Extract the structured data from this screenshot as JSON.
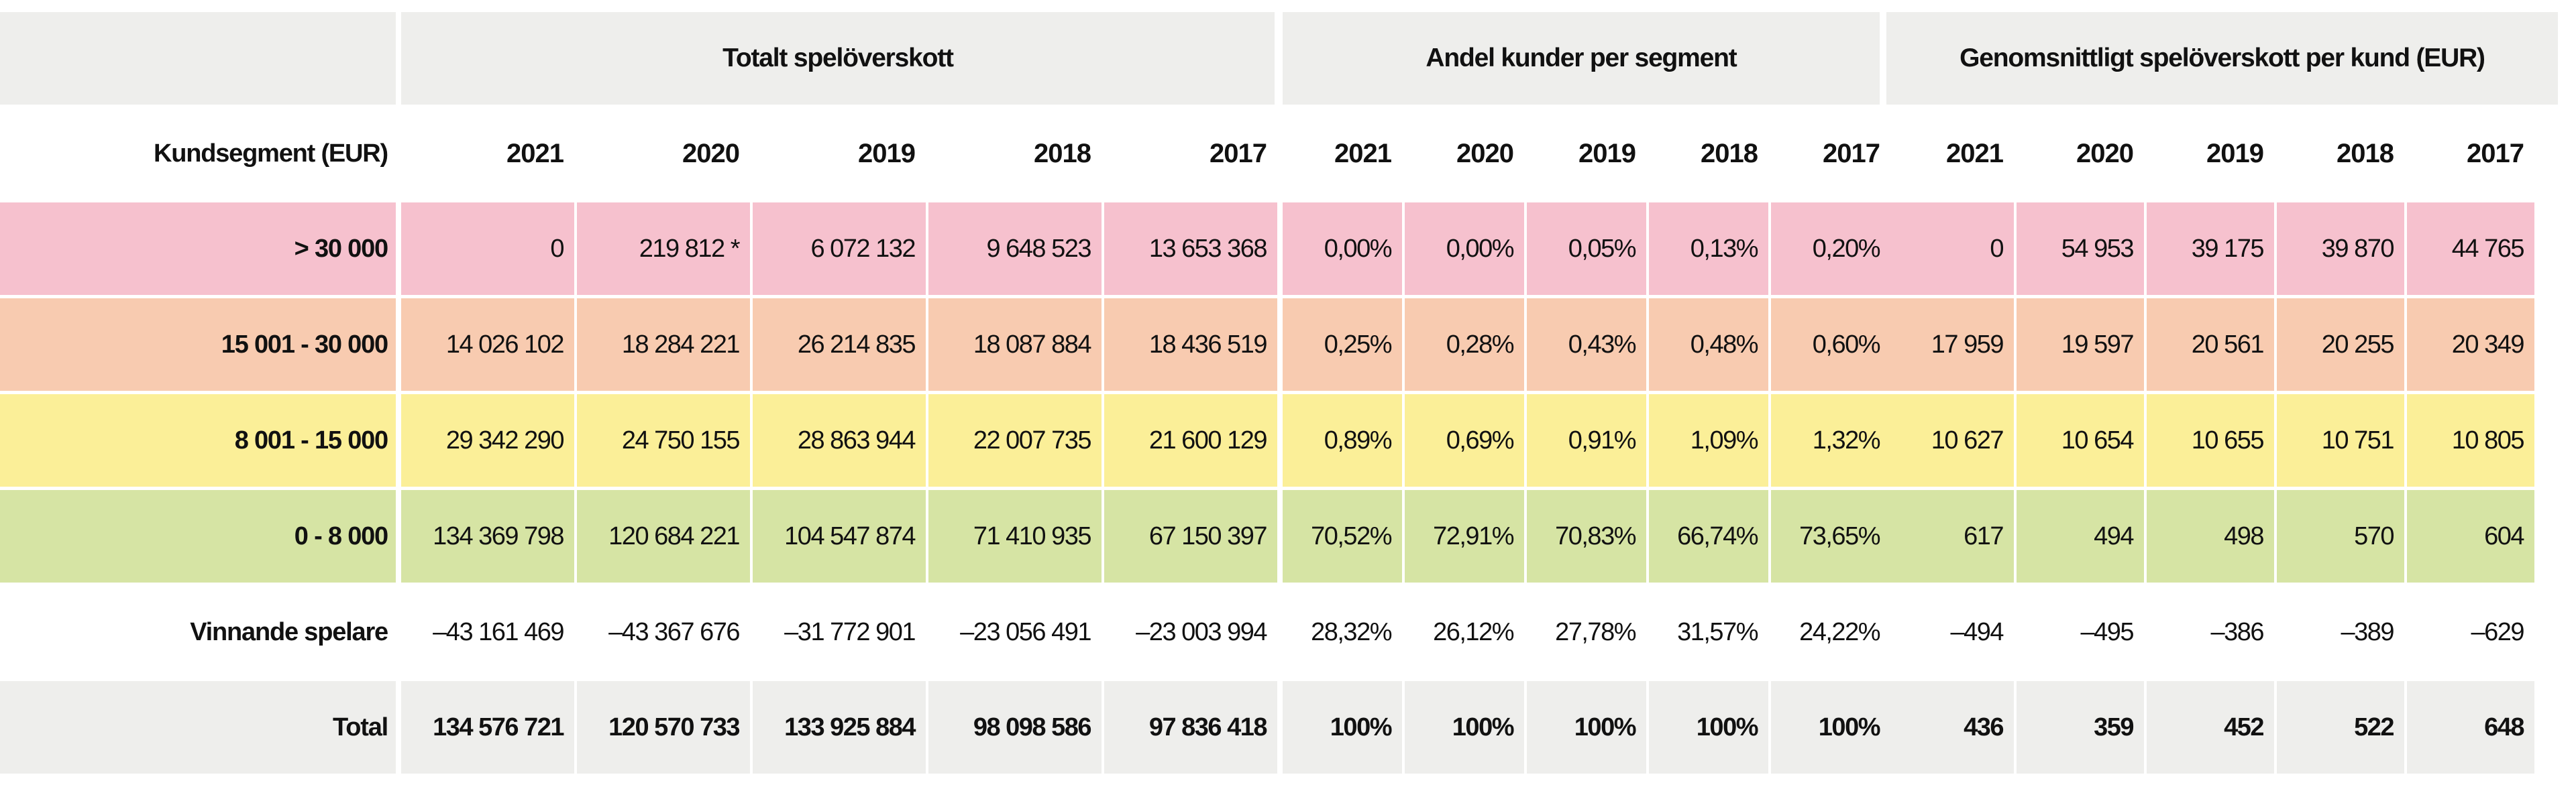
{
  "colors": {
    "header_bg": "#eeeeec",
    "row_over_30000": "#f6c1ce",
    "row_15001_30000": "#f8cbb0",
    "row_8001_15000": "#fbef98",
    "row_0_8000": "#d6e4a4",
    "row_winners": "#ffffff",
    "row_total": "#eeeeec"
  },
  "groups": [
    "Totalt spelöverskott",
    "Andel kunder per segment",
    "Genomsnittligt spelöverskott per kund (EUR)"
  ],
  "segment_header": "Kundsegment (EUR)",
  "years": [
    "2021",
    "2020",
    "2019",
    "2018",
    "2017"
  ],
  "rows": [
    {
      "label": "> 30 000",
      "total": [
        "0",
        "219 812 *",
        "6 072 132",
        "9 648 523",
        "13 653 368"
      ],
      "share": [
        "0,00%",
        "0,00%",
        "0,05%",
        "0,13%",
        "0,20%"
      ],
      "avg": [
        "0",
        "54 953",
        "39 175",
        "39 870",
        "44 765"
      ]
    },
    {
      "label": "15 001 - 30 000",
      "total": [
        "14 026 102",
        "18 284 221",
        "26 214 835",
        "18 087 884",
        "18 436 519"
      ],
      "share": [
        "0,25%",
        "0,28%",
        "0,43%",
        "0,48%",
        "0,60%"
      ],
      "avg": [
        "17 959",
        "19 597",
        "20 561",
        "20 255",
        "20 349"
      ]
    },
    {
      "label": "8 001 - 15 000",
      "total": [
        "29 342 290",
        "24 750 155",
        "28 863 944",
        "22 007 735",
        "21 600 129"
      ],
      "share": [
        "0,89%",
        "0,69%",
        "0,91%",
        "1,09%",
        "1,32%"
      ],
      "avg": [
        "10 627",
        "10 654",
        "10 655",
        "10 751",
        "10 805"
      ]
    },
    {
      "label": "0 - 8 000",
      "total": [
        "134 369 798",
        "120 684 221",
        "104 547 874",
        "71 410 935",
        "67 150 397"
      ],
      "share": [
        "70,52%",
        "72,91%",
        "70,83%",
        "66,74%",
        "73,65%"
      ],
      "avg": [
        "617",
        "494",
        "498",
        "570",
        "604"
      ]
    },
    {
      "label": "Vinnande spelare",
      "total": [
        "–43 161 469",
        "–43 367 676",
        "–31 772 901",
        "–23 056 491",
        "–23 003 994"
      ],
      "share": [
        "28,32%",
        "26,12%",
        "27,78%",
        "31,57%",
        "24,22%"
      ],
      "avg": [
        "–494",
        "–495",
        "–386",
        "–389",
        "–629"
      ]
    },
    {
      "label": "Total",
      "total": [
        "134 576 721",
        "120 570 733",
        "133 925 884",
        "98 098 586",
        "97 836 418"
      ],
      "share": [
        "100%",
        "100%",
        "100%",
        "100%",
        "100%"
      ],
      "avg": [
        "436",
        "359",
        "452",
        "522",
        "648"
      ]
    }
  ]
}
